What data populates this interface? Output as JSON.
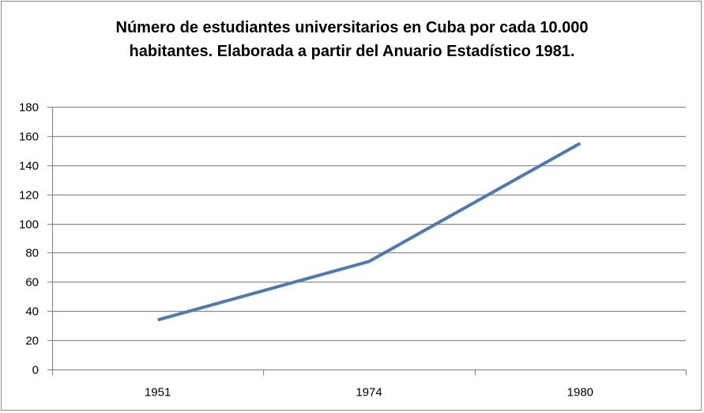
{
  "chart_data": {
    "type": "line",
    "title_lines": [
      "Número de estudiantes universitarios en Cuba por cada 10.000",
      "habitantes. Elaborada a partir del Anuario Estadístico 1981."
    ],
    "categories": [
      "1951",
      "1974",
      "1980"
    ],
    "series": [
      {
        "values": [
          34,
          74,
          155
        ]
      }
    ],
    "ylim": [
      0,
      180
    ],
    "yticks": [
      "0",
      "20",
      "40",
      "60",
      "80",
      "100",
      "120",
      "140",
      "160",
      "180"
    ],
    "grid": true,
    "legend": "none",
    "colors": {
      "line": "#4a7ab9",
      "grid": "#8c8c8c",
      "axis": "#8c8c8c"
    }
  }
}
